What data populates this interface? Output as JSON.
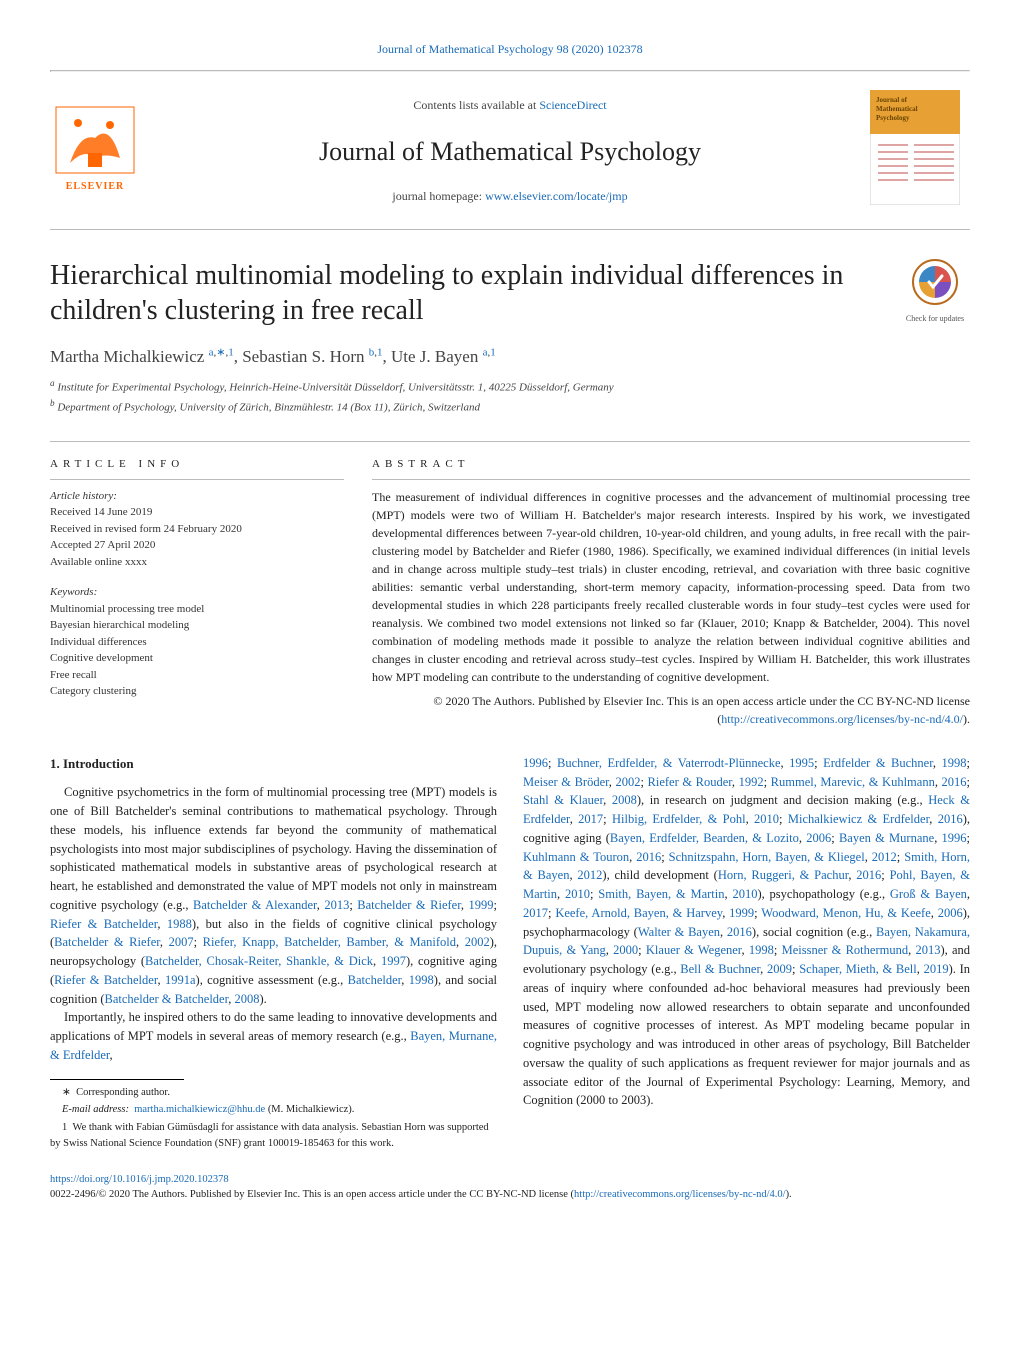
{
  "top_citation": {
    "text": "Journal of Mathematical Psychology 98 (2020) 102378",
    "url_label": "Journal of Mathematical Psychology 98 (2020) 102378"
  },
  "header": {
    "contents_prefix": "Contents lists available at ",
    "contents_link": "ScienceDirect",
    "journal_name": "Journal of Mathematical Psychology",
    "homepage_prefix": "journal homepage: ",
    "homepage_link": "www.elsevier.com/locate/jmp",
    "publisher": "ELSEVIER",
    "cover_label1": "Journal of",
    "cover_label2": "Mathematical",
    "cover_label3": "Psychology",
    "cover_color": "#e6a033"
  },
  "title": "Hierarchical multinomial modeling to explain individual differences in children's clustering in free recall",
  "check_updates_label": "Check for updates",
  "authors_html": "Martha Michalkiewicz <sup><span class='blue'>a</span>,<span class='blue'>∗</span>,<span class='blue'>1</span></sup>, Sebastian S. Horn <sup><span class='blue'>b</span>,<span class='blue'>1</span></sup>, Ute J. Bayen <sup><span class='blue'>a</span>,<span class='blue'>1</span></sup>",
  "affiliations": [
    "a Institute for Experimental Psychology, Heinrich-Heine-Universität Düsseldorf, Universitätsstr. 1, 40225 Düsseldorf, Germany",
    "b Department of Psychology, University of Zürich, Binzmühlestr. 14 (Box 11), Zürich, Switzerland"
  ],
  "article_info": {
    "heading": "ARTICLE INFO",
    "history_label": "Article history:",
    "history_lines": [
      "Received 14 June 2019",
      "Received in revised form 24 February 2020",
      "Accepted 27 April 2020",
      "Available online  xxxx"
    ],
    "keywords_label": "Keywords:",
    "keywords": [
      "Multinomial processing tree model",
      "Bayesian hierarchical modeling",
      "Individual differences",
      "Cognitive development",
      "Free recall",
      "Category clustering"
    ]
  },
  "abstract": {
    "heading": "ABSTRACT",
    "text": "The measurement of individual differences in cognitive processes and the advancement of multinomial processing tree (MPT) models were two of William H. Batchelder's major research interests. Inspired by his work, we investigated developmental differences between 7-year-old children, 10-year-old children, and young adults, in free recall with the pair-clustering model by Batchelder and Riefer (1980, 1986). Specifically, we examined individual differences (in initial levels and in change across multiple study–test trials) in cluster encoding, retrieval, and covariation with three basic cognitive abilities: semantic verbal understanding, short-term memory capacity, information-processing speed. Data from two developmental studies in which 228 participants freely recalled clusterable words in four study–test cycles were used for reanalysis. We combined two model extensions not linked so far (Klauer, 2010; Knapp & Batchelder, 2004). This novel combination of modeling methods made it possible to analyze the relation between individual cognitive abilities and changes in cluster encoding and retrieval across study–test cycles. Inspired by William H. Batchelder, this work illustrates how MPT modeling can contribute to the understanding of cognitive development.",
    "license_prefix": "© 2020 The Authors. Published by Elsevier Inc. This is an open access article under the CC BY-NC-ND license (",
    "license_link": "http://creativecommons.org/licenses/by-nc-nd/4.0/",
    "license_suffix": ")."
  },
  "body": {
    "introduction_heading": "1. Introduction",
    "left_para1": "Cognitive psychometrics in the form of multinomial processing tree (MPT) models is one of Bill Batchelder's seminal contributions to mathematical psychology. Through these models, his influence extends far beyond the community of mathematical psychologists into most major subdisciplines of psychology. Having the dissemination of sophisticated mathematical models in substantive areas of psychological research at heart, he established and demonstrated the value of MPT models not only in mainstream cognitive psychology (e.g., <span class='blue'>Batchelder & Alexander</span>, <span class='blue'>2013</span>; <span class='blue'>Batchelder & Riefer</span>, <span class='blue'>1999</span>; <span class='blue'>Riefer & Batchelder</span>, <span class='blue'>1988</span>), but also in the fields of cognitive clinical psychology (<span class='blue'>Batchelder & Riefer</span>, <span class='blue'>2007</span>; <span class='blue'>Riefer, Knapp, Batchelder, Bamber, & Manifold</span>, <span class='blue'>2002</span>), neuropsychology (<span class='blue'>Batchelder, Chosak-Reiter, Shankle, & Dick</span>, <span class='blue'>1997</span>), cognitive aging (<span class='blue'>Riefer & Batchelder</span>, <span class='blue'>1991a</span>), cognitive assessment (e.g., <span class='blue'>Batchelder</span>, <span class='blue'>1998</span>), and social cognition (<span class='blue'>Batchelder & Batchelder</span>, <span class='blue'>2008</span>).",
    "left_para2": "Importantly, he inspired others to do the same leading to innovative developments and applications of MPT models in several areas of memory research (e.g., <span class='blue'>Bayen, Murnane, & Erdfelder</span>,",
    "right_para": "<span class='blue'>1996</span>; <span class='blue'>Buchner, Erdfelder, & Vaterrodt-Plünnecke</span>, <span class='blue'>1995</span>; <span class='blue'>Erdfelder & Buchner</span>, <span class='blue'>1998</span>; <span class='blue'>Meiser & Bröder</span>, <span class='blue'>2002</span>; <span class='blue'>Riefer & Rouder</span>, <span class='blue'>1992</span>; <span class='blue'>Rummel, Marevic, & Kuhlmann</span>, <span class='blue'>2016</span>; <span class='blue'>Stahl & Klauer</span>, <span class='blue'>2008</span>), in research on judgment and decision making (e.g., <span class='blue'>Heck & Erdfelder</span>, <span class='blue'>2017</span>; <span class='blue'>Hilbig, Erdfelder, & Pohl</span>, <span class='blue'>2010</span>; <span class='blue'>Michalkiewicz & Erdfelder</span>, <span class='blue'>2016</span>), cognitive aging (<span class='blue'>Bayen, Erdfelder, Bearden, & Lozito</span>, <span class='blue'>2006</span>; <span class='blue'>Bayen & Murnane</span>, <span class='blue'>1996</span>; <span class='blue'>Kuhlmann & Touron</span>, <span class='blue'>2016</span>; <span class='blue'>Schnitzspahn, Horn, Bayen, & Kliegel</span>, <span class='blue'>2012</span>; <span class='blue'>Smith, Horn, & Bayen</span>, <span class='blue'>2012</span>), child development (<span class='blue'>Horn, Ruggeri, & Pachur</span>, <span class='blue'>2016</span>; <span class='blue'>Pohl, Bayen, & Martin</span>, <span class='blue'>2010</span>; <span class='blue'>Smith, Bayen, & Martin</span>, <span class='blue'>2010</span>), psychopathology (e.g., <span class='blue'>Groß & Bayen</span>, <span class='blue'>2017</span>; <span class='blue'>Keefe, Arnold, Bayen, & Harvey</span>, <span class='blue'>1999</span>; <span class='blue'>Woodward, Menon, Hu, & Keefe</span>, <span class='blue'>2006</span>), psychopharmacology (<span class='blue'>Walter & Bayen</span>, <span class='blue'>2016</span>), social cognition (e.g., <span class='blue'>Bayen, Nakamura, Dupuis, & Yang</span>, <span class='blue'>2000</span>; <span class='blue'>Klauer & Wegener</span>, <span class='blue'>1998</span>; <span class='blue'>Meissner & Rothermund</span>, <span class='blue'>2013</span>), and evolutionary psychology (e.g., <span class='blue'>Bell & Buchner</span>, <span class='blue'>2009</span>; <span class='blue'>Schaper, Mieth, & Bell</span>, <span class='blue'>2019</span>). In areas of inquiry where confounded ad-hoc behavioral measures had previously been used, MPT modeling now allowed researchers to obtain separate and unconfounded measures of cognitive processes of interest. As MPT modeling became popular in cognitive psychology and was introduced in other areas of psychology, Bill Batchelder oversaw the quality of such applications as frequent reviewer for major journals and as associate editor of the Journal of Experimental Psychology: Learning, Memory, and Cognition (2000 to 2003)."
  },
  "footnotes": {
    "corresponding_marker": "∗",
    "corresponding_text": "Corresponding author.",
    "email_label": "E-mail address:",
    "email": "martha.michalkiewicz@hhu.de",
    "email_of": "(M. Michalkiewicz).",
    "fn1_marker": "1",
    "fn1_text": "We thank with Fabian Gümüsdagli for assistance with data analysis. Sebastian Horn was supported by Swiss National Science Foundation (SNF) grant 100019-185463 for this work."
  },
  "doi": {
    "doi_link": "https://doi.org/10.1016/j.jmp.2020.102378",
    "copyright_prefix": "0022-2496/© 2020 The Authors. Published by Elsevier Inc. This is an open access article under the CC BY-NC-ND license (",
    "copyright_link": "http://creativecommons.org/licenses/by-nc-nd/4.0/",
    "copyright_suffix": ")."
  },
  "colors": {
    "link": "#1a6bb8",
    "elsevier_orange": "#ff6600",
    "body_text": "#222222",
    "rule": "#bbbbbb"
  }
}
